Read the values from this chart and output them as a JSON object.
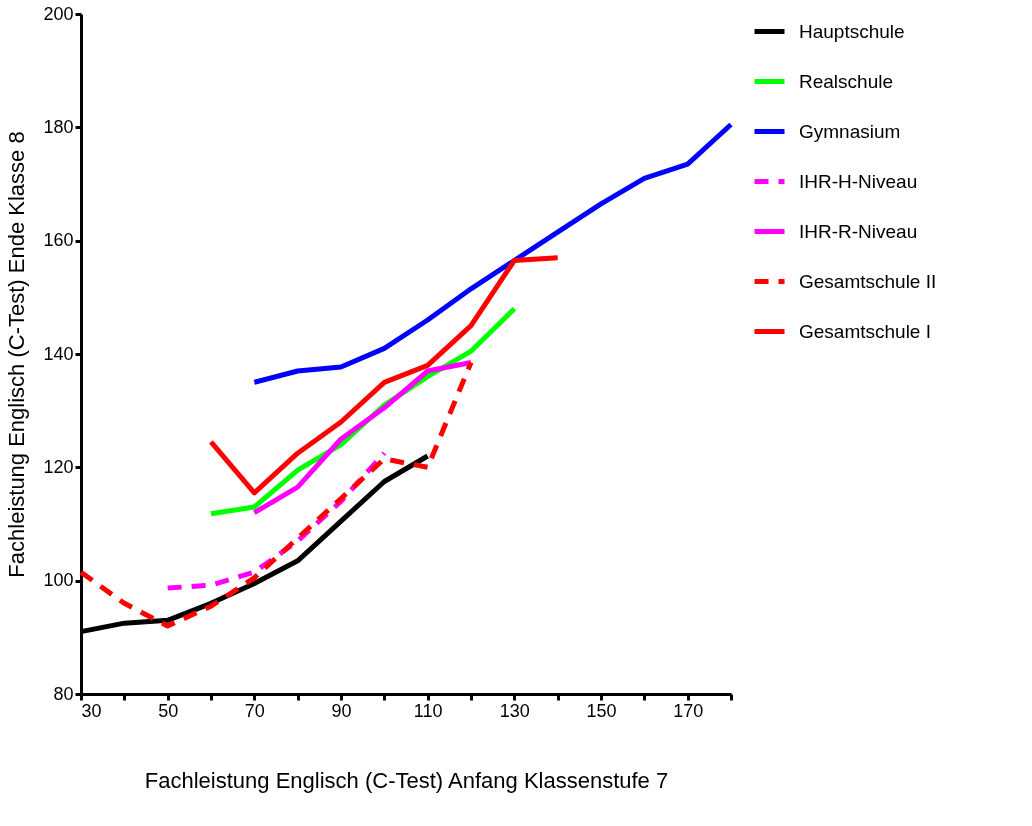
{
  "chart_data": {
    "type": "line",
    "xlabel": "Fachleistung Englisch (C-Test) Anfang Klassenstufe 7",
    "ylabel": "Fachleistung Englisch (C-Test) Ende Klasse 8",
    "xlim": [
      30,
      180
    ],
    "xticks": [
      30,
      {
        "value": 40,
        "label": null
      },
      50,
      {
        "value": 60,
        "label": null
      },
      70,
      {
        "value": 80,
        "label": null
      },
      90,
      {
        "value": 100,
        "label": null
      },
      110,
      {
        "value": 120,
        "label": null
      },
      130,
      {
        "value": 140,
        "label": null
      },
      150,
      {
        "value": 160,
        "label": null
      },
      170,
      {
        "value": 180,
        "label": null
      }
    ],
    "ylim": [
      80,
      200
    ],
    "yticks": [
      80,
      100,
      120,
      140,
      160,
      180,
      200
    ],
    "grid": false,
    "legend": "right",
    "marker": "none",
    "series": [
      {
        "name": "Hauptschule",
        "color": "#000000",
        "line_style": "solid",
        "x": [
          30,
          40,
          50,
          60,
          70,
          80,
          90,
          100,
          110
        ],
        "values": [
          91,
          92.5,
          93,
          96,
          99.5,
          103.5,
          110.5,
          117.5,
          122
        ]
      },
      {
        "name": "Realschule",
        "color": "#00ff00",
        "line_style": "solid",
        "x": [
          60,
          70,
          80,
          90,
          100,
          110,
          120,
          130
        ],
        "values": [
          111.8,
          113,
          119.5,
          124,
          131,
          136,
          140.5,
          148
        ]
      },
      {
        "name": "Gymnasium",
        "color": "#0000ff",
        "line_style": "solid",
        "x": [
          70,
          80,
          90,
          100,
          110,
          120,
          130,
          140,
          150,
          160,
          170,
          180
        ],
        "values": [
          135,
          137,
          137.7,
          141,
          146,
          151.5,
          156.5,
          161.5,
          166.5,
          171,
          173.5,
          180.5
        ]
      },
      {
        "name": "IHR-H-Niveau",
        "color": "#ff00ff",
        "line_style": "dashed",
        "x": [
          50,
          60,
          70,
          80,
          90,
          100
        ],
        "values": [
          98.7,
          99.2,
          101.5,
          107,
          114,
          122.5
        ]
      },
      {
        "name": "IHR-R-Niveau",
        "color": "#ff00ff",
        "line_style": "solid",
        "x": [
          70,
          80,
          90,
          100,
          110,
          120
        ],
        "values": [
          112,
          116.5,
          125,
          130.5,
          137,
          138.5
        ]
      },
      {
        "name": "Gesamtschule II",
        "color": "#ff0000",
        "line_style": "dashed",
        "x": [
          30,
          40,
          50,
          60,
          70,
          80,
          90,
          100,
          110,
          120
        ],
        "values": [
          101.5,
          96,
          92,
          95.5,
          100.5,
          107.5,
          114.5,
          121.5,
          120,
          138.5
        ]
      },
      {
        "name": "Gesamtschule I",
        "color": "#ff0000",
        "line_style": "solid",
        "x": [
          60,
          70,
          80,
          90,
          100,
          110,
          120,
          130,
          140
        ],
        "values": [
          124.5,
          115.5,
          122.5,
          128,
          135,
          138,
          145,
          156.5,
          157
        ]
      }
    ]
  }
}
